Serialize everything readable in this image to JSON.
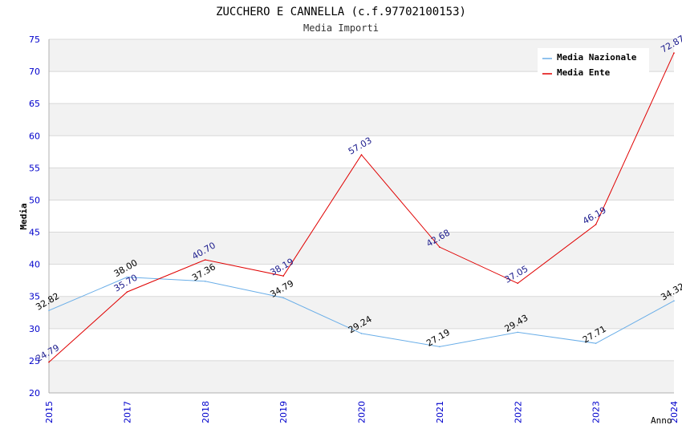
{
  "chart_data": {
    "type": "line",
    "title": "ZUCCHERO E CANNELLA (c.f.97702100153)",
    "subtitle": "Media Importi",
    "xlabel": "Anno",
    "ylabel": "Media",
    "ylim": [
      20,
      75
    ],
    "y_ticks": [
      20,
      25,
      30,
      35,
      40,
      45,
      50,
      55,
      60,
      65,
      70,
      75
    ],
    "categories": [
      "2015",
      "2017",
      "2018",
      "2019",
      "2020",
      "2021",
      "2022",
      "2023",
      "2024"
    ],
    "series": [
      {
        "name": "Media Nazionale",
        "color": "#6aaee8",
        "label_color": "#000000",
        "values": [
          32.82,
          38.0,
          37.36,
          34.79,
          29.24,
          27.19,
          29.43,
          27.71,
          34.32
        ],
        "labels": [
          "32.82",
          "38.00",
          "37.36",
          "34.79",
          "29.24",
          "27.19",
          "29.43",
          "27.71",
          "34.32"
        ]
      },
      {
        "name": "Media Ente",
        "color": "#e00000",
        "label_color": "#1a1a8c",
        "values": [
          24.79,
          35.7,
          40.7,
          38.19,
          57.03,
          42.68,
          37.05,
          46.19,
          72.87
        ],
        "labels": [
          "24.79",
          "35.70",
          "40.70",
          "38.19",
          "57.03",
          "42.68",
          "37.05",
          "46.19",
          "72.87"
        ]
      }
    ],
    "legend_position": "top-right",
    "grid": true,
    "colors": {
      "axis_text": "#0000cc",
      "band": "#f2f2f2",
      "gridline": "#d8d8d8"
    }
  }
}
